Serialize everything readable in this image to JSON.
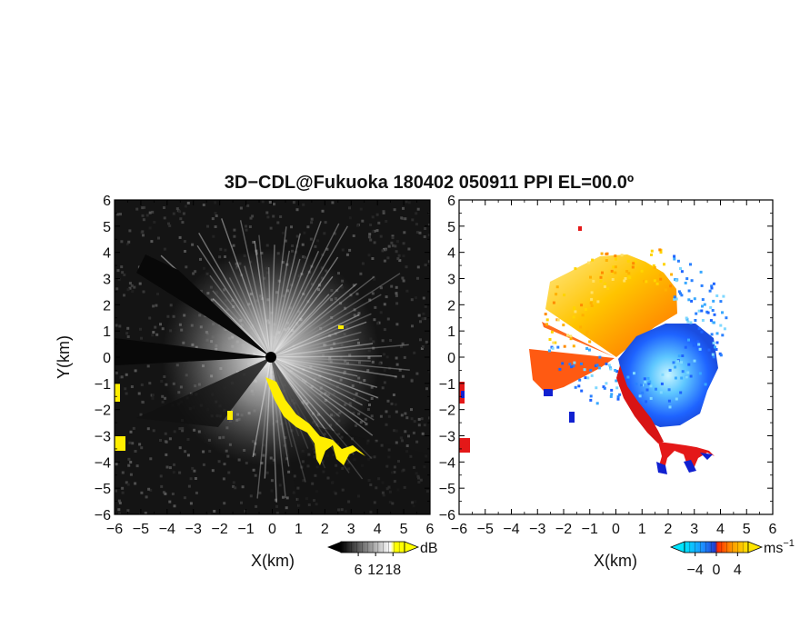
{
  "chart_data": [
    {
      "type": "heatmap",
      "title": "3D−CDL@Fukuoka 180402 050911 PPI EL=00.0º",
      "xlabel": "X(km)",
      "ylabel": "Y(km)",
      "xlim": [
        -6,
        6
      ],
      "ylim": [
        -6,
        6
      ],
      "x_ticks": [
        "−6",
        "−5",
        "−4",
        "−3",
        "−2",
        "−1",
        "0",
        "1",
        "2",
        "3",
        "4",
        "5",
        "6"
      ],
      "y_ticks": [
        "−6",
        "−5",
        "−4",
        "−3",
        "−2",
        "−1",
        "0",
        "1",
        "2",
        "3",
        "4",
        "5",
        "6"
      ],
      "colorbar": {
        "unit": "dB",
        "tick_labels": [
          "6",
          "12",
          "18"
        ],
        "ticks": [
          6,
          12,
          18
        ],
        "range": [
          0,
          22
        ],
        "colors": [
          "#000000",
          "#ffffff",
          "#ffff00"
        ]
      },
      "colors": {
        "background": "#111111",
        "echo_high": "#ffffff",
        "echo_low": "#555555",
        "flag": "#ffff00"
      }
    },
    {
      "type": "heatmap",
      "xlabel": "X(km)",
      "xlim": [
        -6,
        6
      ],
      "ylim": [
        -6,
        6
      ],
      "x_ticks": [
        "−6",
        "−5",
        "−4",
        "−3",
        "−2",
        "−1",
        "0",
        "1",
        "2",
        "3",
        "4",
        "5",
        "6"
      ],
      "y_ticks": [
        "−6",
        "−5",
        "−4",
        "−3",
        "−2",
        "−1",
        "0",
        "1",
        "2",
        "3",
        "4",
        "5",
        "6"
      ],
      "colorbar": {
        "unit": "ms",
        "unit_exp": "−1",
        "tick_labels": [
          "−4",
          "0",
          "4"
        ],
        "ticks": [
          -4,
          0,
          4
        ],
        "range": [
          -6,
          6
        ],
        "colors": [
          "#00e5ff",
          "#1e5bff",
          "#ff2a00",
          "#ff9a00",
          "#ffe600"
        ]
      },
      "colors": {
        "toward": "#1e6bff",
        "toward_light": "#7fd0ff",
        "away": "#ff3a00",
        "away_light": "#ffd000",
        "edge_red": "#e01010",
        "edge_blue": "#1020d0"
      }
    }
  ]
}
